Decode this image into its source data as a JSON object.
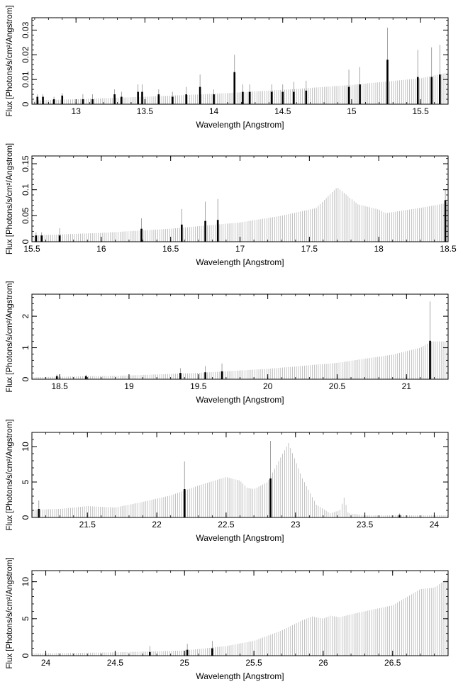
{
  "chart_data": [
    {
      "type": "bar",
      "xlabel": "Wavelength [Angstrom]",
      "ylabel": "Flux [Photons/s/cm²/Angstrom]",
      "xlim": [
        12.68,
        15.7
      ],
      "ylim": [
        0,
        0.035
      ],
      "xticks": [
        13,
        13.5,
        14,
        14.5,
        15,
        15.5
      ],
      "yticks": [
        0,
        0.01,
        0.02,
        0.03
      ],
      "ytick_labels": [
        "0",
        "0.01",
        "0.02",
        "0.03"
      ],
      "continuum": [
        [
          12.68,
          0.0015
        ],
        [
          13.0,
          0.002
        ],
        [
          13.5,
          0.003
        ],
        [
          14.0,
          0.0042
        ],
        [
          14.5,
          0.0058
        ],
        [
          15.0,
          0.0078
        ],
        [
          15.5,
          0.0105
        ],
        [
          15.7,
          0.0128
        ]
      ],
      "lines": [
        {
          "x": 12.72,
          "y": 0.003,
          "err": 0.001
        },
        {
          "x": 12.76,
          "y": 0.003,
          "err": 0.001
        },
        {
          "x": 12.84,
          "y": 0.002,
          "err": 0.001
        },
        {
          "x": 12.9,
          "y": 0.0035,
          "err": 0.001
        },
        {
          "x": 13.05,
          "y": 0.002,
          "err": 0.002
        },
        {
          "x": 13.12,
          "y": 0.002,
          "err": 0.002
        },
        {
          "x": 13.28,
          "y": 0.004,
          "err": 0.002
        },
        {
          "x": 13.33,
          "y": 0.003,
          "err": 0.002
        },
        {
          "x": 13.45,
          "y": 0.005,
          "err": 0.003
        },
        {
          "x": 13.48,
          "y": 0.005,
          "err": 0.003
        },
        {
          "x": 13.6,
          "y": 0.004,
          "err": 0.002
        },
        {
          "x": 13.7,
          "y": 0.003,
          "err": 0.002
        },
        {
          "x": 13.8,
          "y": 0.004,
          "err": 0.003
        },
        {
          "x": 13.9,
          "y": 0.007,
          "err": 0.005
        },
        {
          "x": 14.0,
          "y": 0.004,
          "err": 0.002
        },
        {
          "x": 14.15,
          "y": 0.013,
          "err": 0.007
        },
        {
          "x": 14.21,
          "y": 0.005,
          "err": 0.003
        },
        {
          "x": 14.26,
          "y": 0.005,
          "err": 0.003
        },
        {
          "x": 14.42,
          "y": 0.005,
          "err": 0.003
        },
        {
          "x": 14.5,
          "y": 0.005,
          "err": 0.003
        },
        {
          "x": 14.58,
          "y": 0.005,
          "err": 0.004
        },
        {
          "x": 14.67,
          "y": 0.0055,
          "err": 0.004
        },
        {
          "x": 14.98,
          "y": 0.007,
          "err": 0.007
        },
        {
          "x": 15.06,
          "y": 0.008,
          "err": 0.007
        },
        {
          "x": 15.26,
          "y": 0.018,
          "err": 0.013
        },
        {
          "x": 15.48,
          "y": 0.011,
          "err": 0.011
        },
        {
          "x": 15.58,
          "y": 0.011,
          "err": 0.012
        },
        {
          "x": 15.64,
          "y": 0.012,
          "err": 0.012
        }
      ]
    },
    {
      "type": "bar",
      "xlabel": "Wavelength [Angstrom]",
      "ylabel": "Flux [Photons/s/cm²/Angstrom]",
      "xlim": [
        15.5,
        18.5
      ],
      "ylim": [
        0,
        0.165
      ],
      "xticks": [
        15.5,
        16,
        16.5,
        17,
        17.5,
        18,
        18.5
      ],
      "yticks": [
        0,
        0.05,
        0.1,
        0.15
      ],
      "ytick_labels": [
        "0",
        "0.05",
        "0.1",
        "0.15"
      ],
      "continuum": [
        [
          15.5,
          0.012
        ],
        [
          16.0,
          0.017
        ],
        [
          16.5,
          0.025
        ],
        [
          17.0,
          0.037
        ],
        [
          17.3,
          0.05
        ],
        [
          17.55,
          0.065
        ],
        [
          17.7,
          0.105
        ],
        [
          17.85,
          0.072
        ],
        [
          18.0,
          0.062
        ],
        [
          18.05,
          0.055
        ],
        [
          18.3,
          0.065
        ],
        [
          18.5,
          0.075
        ]
      ],
      "lines": [
        {
          "x": 15.53,
          "y": 0.012,
          "err": 0.006
        },
        {
          "x": 15.57,
          "y": 0.012,
          "err": 0.006
        },
        {
          "x": 15.7,
          "y": 0.012,
          "err": 0.014
        },
        {
          "x": 16.29,
          "y": 0.025,
          "err": 0.02
        },
        {
          "x": 16.58,
          "y": 0.033,
          "err": 0.03
        },
        {
          "x": 16.75,
          "y": 0.04,
          "err": 0.037
        },
        {
          "x": 16.84,
          "y": 0.042,
          "err": 0.04
        },
        {
          "x": 18.48,
          "y": 0.08,
          "err": 0.02
        }
      ]
    },
    {
      "type": "bar",
      "xlabel": "Wavelength [Angstrom]",
      "ylabel": "Flux [Photons/s/cm²/Angstrom]",
      "xlim": [
        18.3,
        21.3
      ],
      "ylim": [
        0,
        2.7
      ],
      "xticks": [
        18.5,
        19,
        19.5,
        20,
        20.5,
        21
      ],
      "yticks": [
        0,
        1,
        2
      ],
      "ytick_labels": [
        "0",
        "1",
        "2"
      ],
      "continuum": [
        [
          18.3,
          0.06
        ],
        [
          18.5,
          0.08
        ],
        [
          19.0,
          0.12
        ],
        [
          19.5,
          0.2
        ],
        [
          20.0,
          0.33
        ],
        [
          20.5,
          0.52
        ],
        [
          20.9,
          0.78
        ],
        [
          21.1,
          1.0
        ],
        [
          21.18,
          1.2
        ],
        [
          21.3,
          1.2
        ]
      ],
      "lines": [
        {
          "x": 18.48,
          "y": 0.1,
          "err": 0.05
        },
        {
          "x": 18.69,
          "y": 0.1,
          "err": 0.04
        },
        {
          "x": 19.37,
          "y": 0.2,
          "err": 0.15
        },
        {
          "x": 19.55,
          "y": 0.22,
          "err": 0.2
        },
        {
          "x": 19.67,
          "y": 0.25,
          "err": 0.25
        },
        {
          "x": 21.17,
          "y": 1.22,
          "err": 1.25
        }
      ]
    },
    {
      "type": "bar",
      "xlabel": "Wavelength [Angstrom]",
      "ylabel": "Flux [Photons/s/cm²/Angstrom]",
      "xlim": [
        21.1,
        24.1
      ],
      "ylim": [
        0,
        12
      ],
      "xticks": [
        21.5,
        22,
        22.5,
        23,
        23.5,
        24
      ],
      "yticks": [
        0,
        5,
        10
      ],
      "ytick_labels": [
        "0",
        "5",
        "10"
      ],
      "continuum": [
        [
          21.1,
          1.1
        ],
        [
          21.3,
          1.2
        ],
        [
          21.5,
          1.6
        ],
        [
          21.7,
          1.4
        ],
        [
          21.9,
          2.2
        ],
        [
          22.1,
          3.1
        ],
        [
          22.3,
          4.5
        ],
        [
          22.5,
          5.7
        ],
        [
          22.6,
          5.2
        ],
        [
          22.65,
          4.2
        ],
        [
          22.7,
          4.0
        ],
        [
          22.8,
          5.0
        ],
        [
          22.88,
          8.0
        ],
        [
          22.95,
          10.5
        ],
        [
          23.05,
          5.5
        ],
        [
          23.15,
          1.8
        ],
        [
          23.25,
          0.6
        ],
        [
          23.32,
          1.0
        ],
        [
          23.35,
          2.8
        ],
        [
          23.38,
          0.6
        ],
        [
          23.5,
          0.3
        ],
        [
          24.1,
          0.3
        ]
      ],
      "lines": [
        {
          "x": 21.15,
          "y": 1.2,
          "err": 1.2
        },
        {
          "x": 22.2,
          "y": 4.0,
          "err": 3.9
        },
        {
          "x": 22.82,
          "y": 5.5,
          "err": 5.3
        },
        {
          "x": 23.75,
          "y": 0.35,
          "err": 0.2
        }
      ]
    },
    {
      "type": "bar",
      "xlabel": "Wavelength [Angstrom]",
      "ylabel": "Flux [Photons/s/cm²/Angstrom]",
      "xlim": [
        23.9,
        26.9
      ],
      "ylim": [
        0,
        11.5
      ],
      "xticks": [
        24,
        24.5,
        25,
        25.5,
        26,
        26.5
      ],
      "yticks": [
        0,
        5,
        10
      ],
      "ytick_labels": [
        "0",
        "5",
        "10"
      ],
      "continuum": [
        [
          23.9,
          0.3
        ],
        [
          24.5,
          0.45
        ],
        [
          25.0,
          0.7
        ],
        [
          25.3,
          1.3
        ],
        [
          25.5,
          2.0
        ],
        [
          25.7,
          3.4
        ],
        [
          25.85,
          4.8
        ],
        [
          25.92,
          5.3
        ],
        [
          26.0,
          5.0
        ],
        [
          26.05,
          5.4
        ],
        [
          26.12,
          5.2
        ],
        [
          26.2,
          5.6
        ],
        [
          26.5,
          6.8
        ],
        [
          26.7,
          9.0
        ],
        [
          26.8,
          9.2
        ],
        [
          26.9,
          10.5
        ]
      ],
      "lines": [
        {
          "x": 24.75,
          "y": 0.5,
          "err": 0.8
        },
        {
          "x": 25.02,
          "y": 0.8,
          "err": 0.8
        },
        {
          "x": 25.2,
          "y": 1.0,
          "err": 1.0
        }
      ]
    }
  ]
}
